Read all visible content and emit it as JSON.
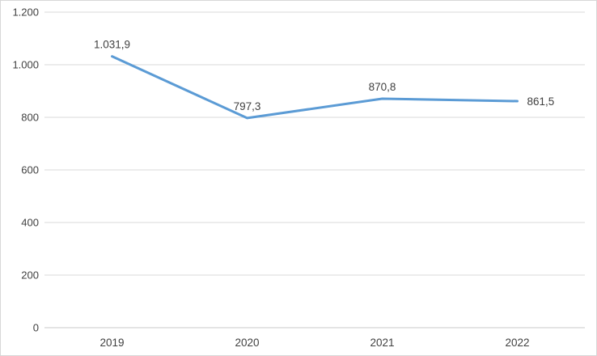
{
  "chart_data": {
    "type": "line",
    "title": "",
    "xlabel": "",
    "ylabel": "",
    "categories": [
      "2019",
      "2020",
      "2021",
      "2022"
    ],
    "series": [
      {
        "name": "series-1",
        "values": [
          1031.9,
          797.3,
          870.8,
          861.5
        ],
        "color": "#5b9bd5"
      }
    ],
    "data_labels": [
      "1.031,9",
      "797,3",
      "870,8",
      "861,5"
    ],
    "data_label_positions": [
      "above",
      "above",
      "above",
      "right"
    ],
    "y_ticks": [
      0,
      200,
      400,
      600,
      800,
      1000,
      1200
    ],
    "y_tick_labels": [
      "0",
      "200",
      "400",
      "600",
      "800",
      "1.000",
      "1.200"
    ],
    "ylim": [
      0,
      1200
    ],
    "grid": true,
    "legend": "none",
    "colors": {
      "line": "#5b9bd5",
      "gridline": "#d9d9d9",
      "axis_line": "#c9c9c9",
      "text": "#404040",
      "background": "#ffffff",
      "frame_border": "#d7d7d7"
    }
  }
}
